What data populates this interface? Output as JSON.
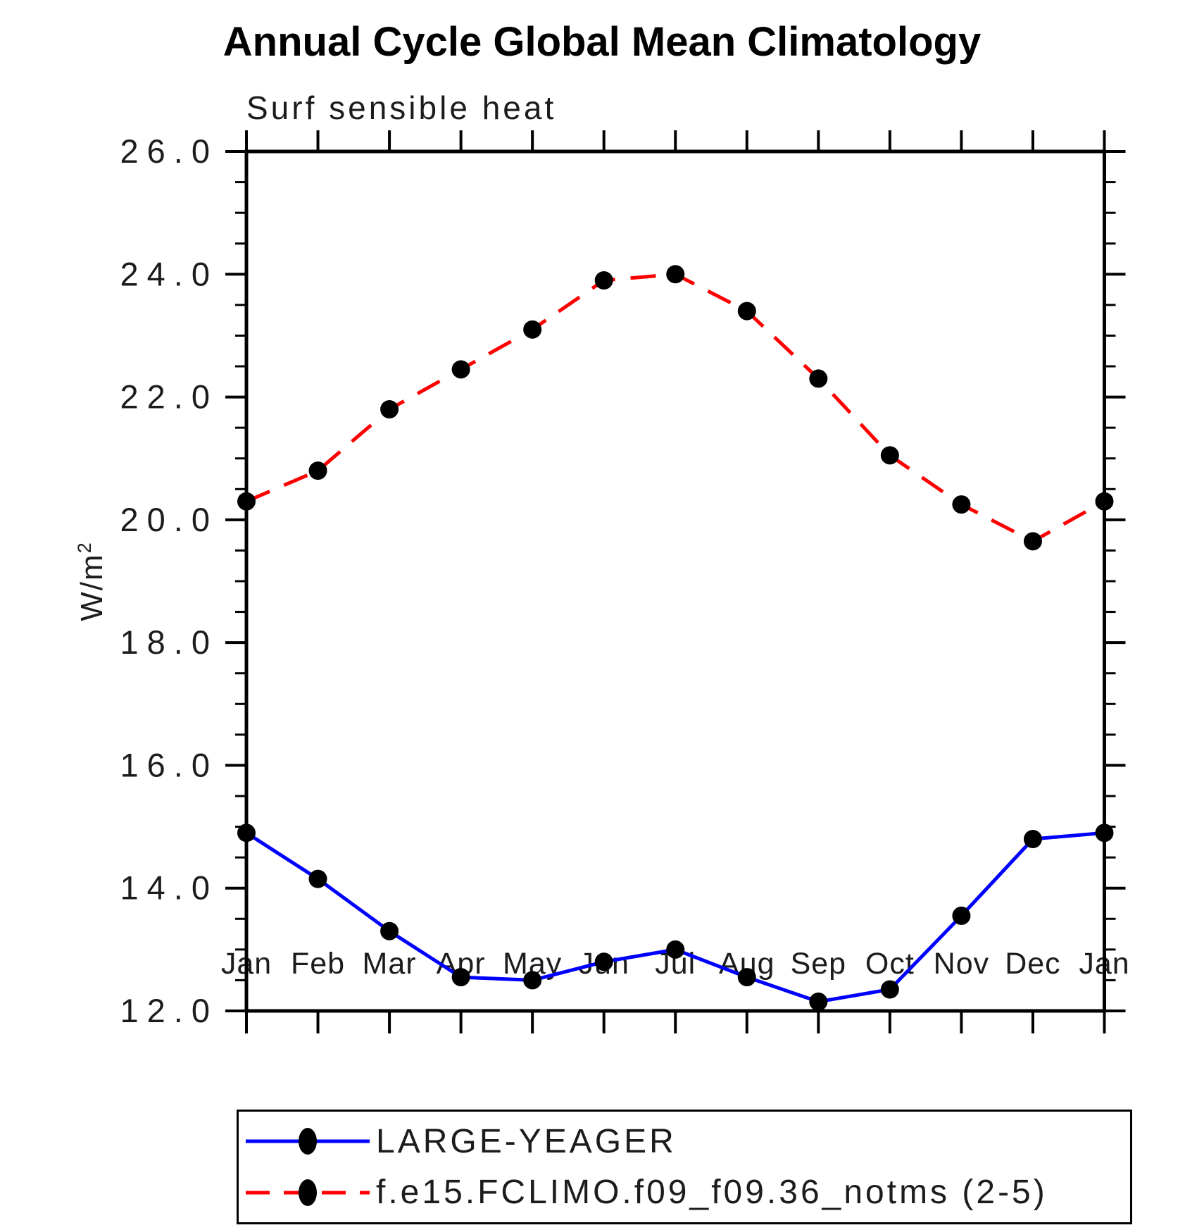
{
  "header": {
    "title": "Annual Cycle Global Mean Climatology",
    "subtitle": "Surf sensible heat"
  },
  "chart_data": {
    "type": "line",
    "title": "Annual Cycle Global Mean Climatology",
    "subtitle": "Surf sensible heat",
    "ylabel": {
      "base": "W/m",
      "sup": "2"
    },
    "categories": [
      "Jan",
      "Feb",
      "Mar",
      "Apr",
      "May",
      "Jun",
      "Jul",
      "Aug",
      "Sep",
      "Oct",
      "Nov",
      "Dec",
      "Jan"
    ],
    "series": [
      {
        "name": "LARGE-YEAGER",
        "color": "#0000ff",
        "style": "solid",
        "marker": "filled-circle",
        "values": [
          14.9,
          14.15,
          13.3,
          12.55,
          12.5,
          12.8,
          13.0,
          12.55,
          12.15,
          12.35,
          13.55,
          14.8,
          14.9
        ]
      },
      {
        "name": "f.e15.FCLIMO.f09_f09.36_notms (2-5)",
        "color": "#ff0000",
        "style": "dashed",
        "marker": "filled-circle",
        "values": [
          20.3,
          20.8,
          21.8,
          22.45,
          23.1,
          23.9,
          24.0,
          23.4,
          22.3,
          21.05,
          20.25,
          19.65,
          20.3
        ]
      }
    ],
    "ylim": [
      12.0,
      26.0
    ],
    "ytick_major_values": [
      26.0,
      24.0,
      22.0,
      20.0,
      18.0,
      16.0,
      14.0,
      12.0
    ],
    "ytick_major_labels": [
      "26.0",
      "24.0",
      "22.0",
      "20.0",
      "18.0",
      "16.0",
      "14.0",
      "12.0"
    ],
    "ytick_minor_step": 0.5,
    "marker_color": "#000000",
    "axis_color": "#000000",
    "grid": "off",
    "legend_position": "bottom"
  }
}
